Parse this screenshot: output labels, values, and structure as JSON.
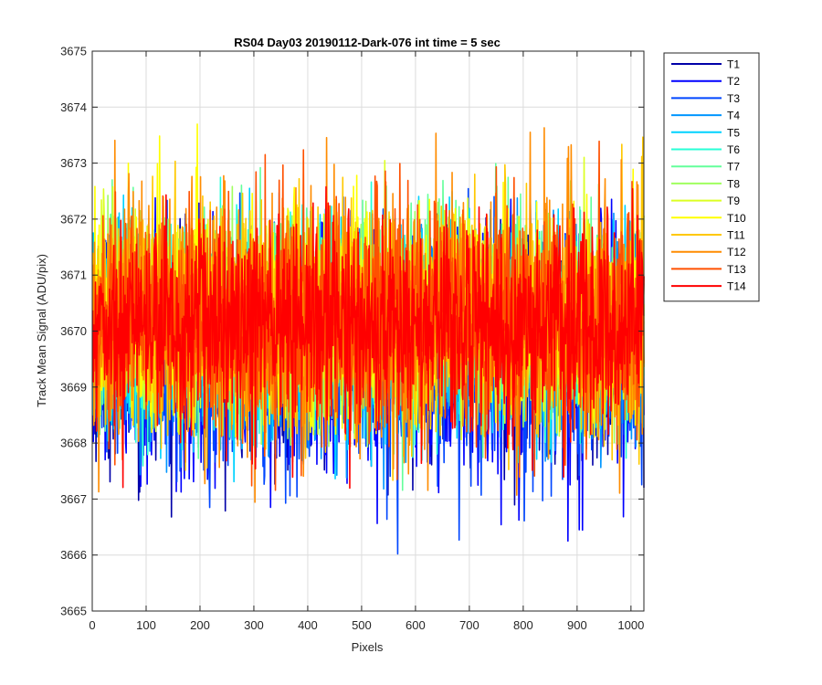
{
  "chart_data": {
    "type": "line",
    "title": "RS04 Day03 20190112-Dark-076 int time = 5 sec",
    "xlabel": "Pixels",
    "ylabel": "Track Mean Signal (ADU/pix)",
    "xlim": [
      0,
      1024
    ],
    "ylim": [
      3665,
      3675
    ],
    "xticks": [
      0,
      100,
      200,
      300,
      400,
      500,
      600,
      700,
      800,
      900,
      1000
    ],
    "yticks": [
      3665,
      3666,
      3667,
      3668,
      3669,
      3670,
      3671,
      3672,
      3673,
      3674,
      3675
    ],
    "grid": true,
    "legend_position": "outside-top-right",
    "x_points": "1..1024 (one sample per pixel)",
    "series": [
      {
        "name": "T1",
        "color": "#0000a8",
        "mean": 3669.7,
        "min": 3666.4,
        "max": 3672.3
      },
      {
        "name": "T2",
        "color": "#0000ff",
        "mean": 3669.6,
        "min": 3665.7,
        "max": 3672.4
      },
      {
        "name": "T3",
        "color": "#0046ff",
        "mean": 3669.7,
        "min": 3666.0,
        "max": 3672.6
      },
      {
        "name": "T4",
        "color": "#0096ff",
        "mean": 3669.8,
        "min": 3666.8,
        "max": 3672.5
      },
      {
        "name": "T5",
        "color": "#00d2ff",
        "mean": 3670.0,
        "min": 3667.2,
        "max": 3672.6
      },
      {
        "name": "T6",
        "color": "#28ffd7",
        "mean": 3670.0,
        "min": 3667.5,
        "max": 3672.8
      },
      {
        "name": "T7",
        "color": "#64ff9b",
        "mean": 3670.1,
        "min": 3667.0,
        "max": 3673.0
      },
      {
        "name": "T8",
        "color": "#a0ff5f",
        "mean": 3670.1,
        "min": 3667.9,
        "max": 3673.4
      },
      {
        "name": "T9",
        "color": "#dcff23",
        "mean": 3670.2,
        "min": 3668.0,
        "max": 3673.3
      },
      {
        "name": "T10",
        "color": "#ffff00",
        "mean": 3670.3,
        "min": 3668.1,
        "max": 3674.3
      },
      {
        "name": "T11",
        "color": "#ffc800",
        "mean": 3670.2,
        "min": 3667.3,
        "max": 3673.6
      },
      {
        "name": "T12",
        "color": "#ff8c00",
        "mean": 3670.2,
        "min": 3666.9,
        "max": 3673.7
      },
      {
        "name": "T13",
        "color": "#ff5000",
        "mean": 3670.2,
        "min": 3667.1,
        "max": 3673.4
      },
      {
        "name": "T14",
        "color": "#ff0000",
        "mean": 3670.2,
        "min": 3667.0,
        "max": 3672.8
      }
    ]
  }
}
